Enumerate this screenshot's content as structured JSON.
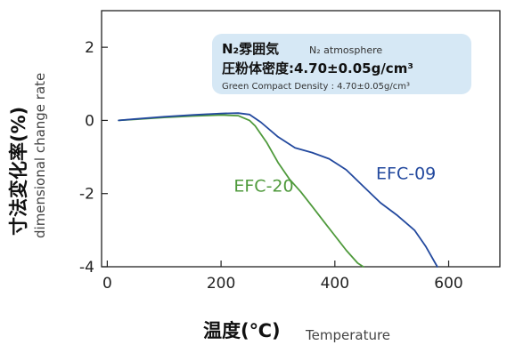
{
  "chart_data": {
    "type": "line",
    "xlim": [
      -10,
      690
    ],
    "ylim": [
      -4,
      3
    ],
    "xticks": [
      0,
      200,
      400,
      600
    ],
    "yticks": [
      2,
      0,
      -2,
      -4
    ],
    "xtick_labels": [
      "0",
      "200",
      "400",
      "600"
    ],
    "ytick_labels": [
      "2",
      "0",
      "-2",
      "-4"
    ],
    "xlabel_ja": "温度(℃)",
    "xlabel_en": "Temperature",
    "ylabel_ja": "寸法変化率(%)",
    "ylabel_en": "dimensional change rate",
    "grid": false,
    "annotation": {
      "line1_main": "N₂雰囲気",
      "line1_sub": "N₂ atmosphere",
      "line2": "圧粉体密度:4.70±0.05g/cm³",
      "line3": "Green Compact Density : 4.70±0.05g/cm³",
      "background": "#d6e8f5"
    },
    "series": [
      {
        "name": "EFC-20",
        "color": "#4f9a3c",
        "x": [
          20,
          50,
          100,
          150,
          200,
          230,
          250,
          260,
          280,
          300,
          320,
          340,
          360,
          380,
          400,
          420,
          440,
          450
        ],
        "y": [
          0.0,
          0.03,
          0.08,
          0.12,
          0.15,
          0.13,
          0.0,
          -0.15,
          -0.6,
          -1.15,
          -1.6,
          -1.95,
          -2.35,
          -2.75,
          -3.15,
          -3.55,
          -3.9,
          -4.0
        ]
      },
      {
        "name": "EFC-09",
        "color": "#23499e",
        "x": [
          20,
          50,
          100,
          150,
          200,
          230,
          250,
          270,
          300,
          330,
          360,
          390,
          420,
          450,
          480,
          510,
          540,
          560,
          580
        ],
        "y": [
          0.0,
          0.04,
          0.1,
          0.15,
          0.19,
          0.2,
          0.16,
          -0.05,
          -0.45,
          -0.75,
          -0.88,
          -1.05,
          -1.35,
          -1.8,
          -2.25,
          -2.6,
          -3.0,
          -3.45,
          -4.0
        ]
      }
    ],
    "series_labels": [
      {
        "name": "EFC-20",
        "x": 275,
        "y": -1.95
      },
      {
        "name": "EFC-09",
        "x": 525,
        "y": -1.6
      }
    ]
  }
}
